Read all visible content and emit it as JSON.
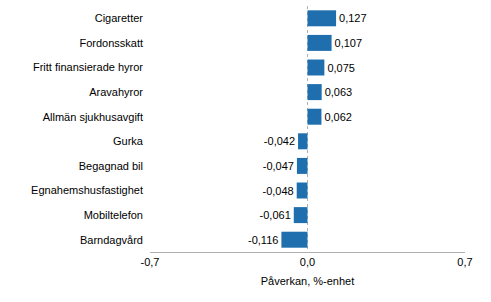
{
  "chart_data": {
    "type": "bar",
    "orientation": "horizontal",
    "x_label": "Påverkan, %-enhet",
    "categories": [
      "Cigaretter",
      "Fordonsskatt",
      "Fritt finansierade hyror",
      "Aravahyror",
      "Allmän sjukhusavgift",
      "Gurka",
      "Begagnad bil",
      "Egnahemshusfastighet",
      "Mobiltelefon",
      "Barndagvård"
    ],
    "values": [
      0.127,
      0.107,
      0.075,
      0.063,
      0.062,
      -0.042,
      -0.047,
      -0.048,
      -0.061,
      -0.116
    ],
    "value_labels": [
      "0,127",
      "0,107",
      "0,075",
      "0,063",
      "0,062",
      "-0,042",
      "-0,047",
      "-0,048",
      "-0,061",
      "-0,116"
    ],
    "color": "#1f6fae",
    "xlim": [
      -0.7,
      0.7
    ],
    "xticks": [
      {
        "value": -0.7,
        "label": "-0,7"
      },
      {
        "value": 0,
        "label": "0,0"
      },
      {
        "value": 0.7,
        "label": "0,7"
      }
    ],
    "grid": true,
    "data_labels": true
  }
}
